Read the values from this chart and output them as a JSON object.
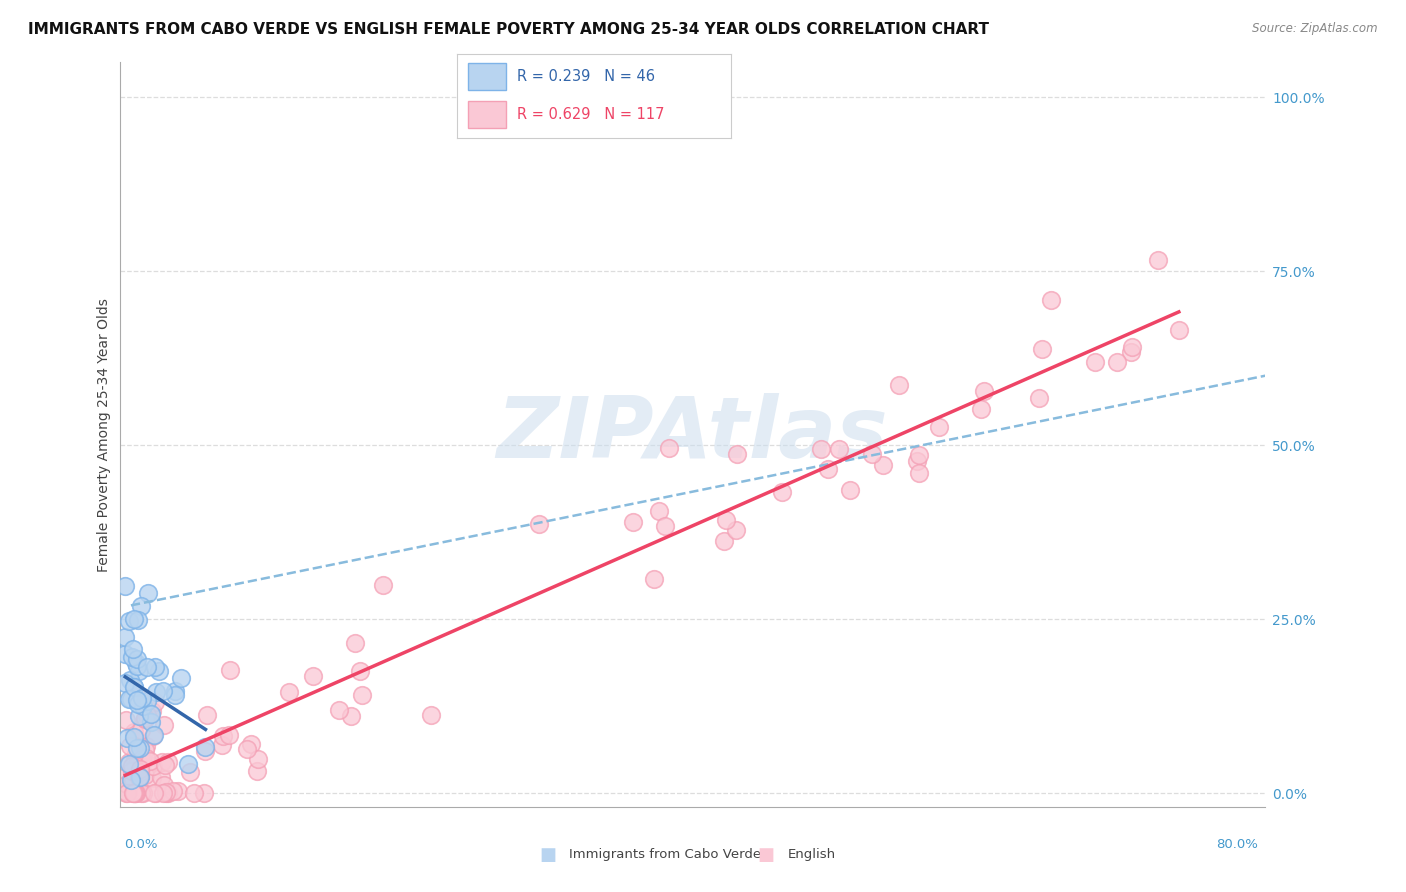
{
  "title": "IMMIGRANTS FROM CABO VERDE VS ENGLISH FEMALE POVERTY AMONG 25-34 YEAR OLDS CORRELATION CHART",
  "source_text": "Source: ZipAtlas.com",
  "ylabel": "Female Poverty Among 25-34 Year Olds",
  "xlim": [
    0.0,
    0.8
  ],
  "ylim": [
    -0.02,
    1.05
  ],
  "yticks_right": [
    0.0,
    0.25,
    0.5,
    0.75,
    1.0
  ],
  "ytick_labels_right": [
    "0.0%",
    "25.0%",
    "50.0%",
    "75.0%",
    "100.0%"
  ],
  "legend_blue_label": "R = 0.239   N = 46",
  "legend_pink_label": "R = 0.629   N = 117",
  "legend_bottom_blue": "Immigrants from Cabo Verde",
  "legend_bottom_pink": "English",
  "blue_color": "#7EB3E8",
  "pink_color": "#F4A0B5",
  "blue_fill_color": "#B8D4F0",
  "pink_fill_color": "#FAC8D5",
  "blue_line_color": "#3366AA",
  "pink_line_color": "#EE4466",
  "dashed_line_color": "#88BBDD",
  "background_color": "#FFFFFF",
  "grid_color": "#DDDDDD",
  "title_fontsize": 11,
  "axis_label_fontsize": 10,
  "tick_fontsize": 10,
  "watermark_color": "#CCDDEE"
}
